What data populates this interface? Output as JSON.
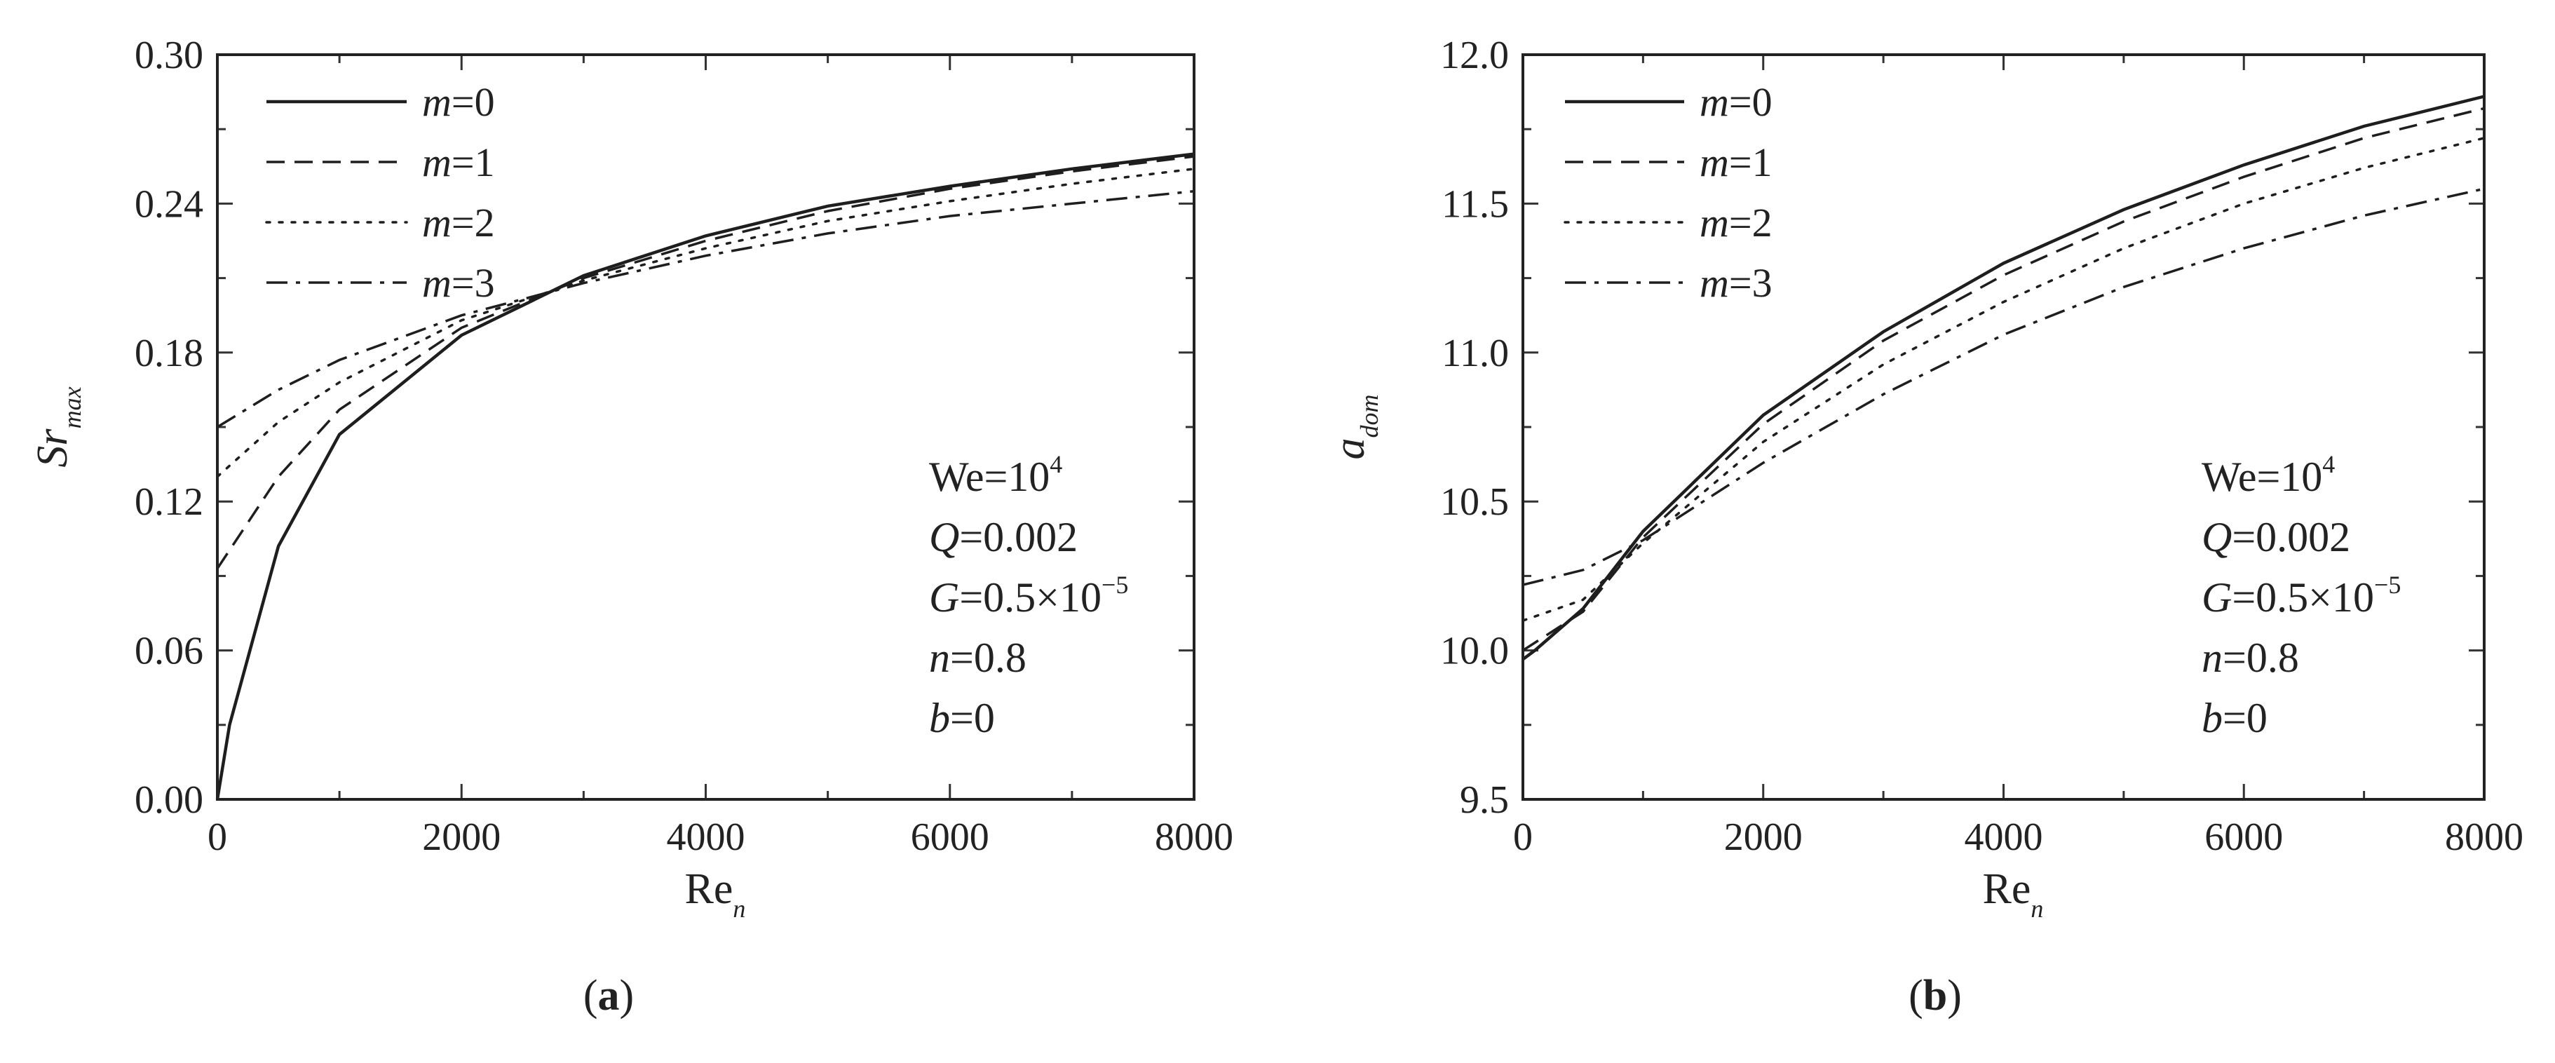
{
  "chart_data": [
    {
      "type": "line",
      "panel": "a",
      "caption": {
        "open": "(",
        "letter": "a",
        "close": ")"
      },
      "xlabel": {
        "main": "Re",
        "sub": "n"
      },
      "ylabel": {
        "main": "Sr",
        "sub": "max"
      },
      "xlim": [
        0,
        8000
      ],
      "ylim": [
        0,
        0.3
      ],
      "xticks": [
        0,
        2000,
        4000,
        6000,
        8000
      ],
      "xtick_labels": [
        "0",
        "2000",
        "4000",
        "6000",
        "8000"
      ],
      "yticks": [
        0,
        0.06,
        0.12,
        0.18,
        0.24,
        0.3
      ],
      "ytick_labels": [
        "0.00",
        "0.06",
        "0.12",
        "0.18",
        "0.24",
        "0.30"
      ],
      "grid": false,
      "legend_position": "top-left",
      "series": [
        {
          "name": "m=0",
          "label_var": "m",
          "label_val": "=0",
          "style": "solid",
          "x": [
            0,
            100,
            500,
            1000,
            2000,
            3000,
            4000,
            5000,
            6000,
            7000,
            8000
          ],
          "values": [
            0.0,
            0.03,
            0.102,
            0.147,
            0.187,
            0.211,
            0.227,
            0.239,
            0.247,
            0.254,
            0.26
          ]
        },
        {
          "name": "m=1",
          "label_var": "m",
          "label_val": "=1",
          "style": "dashed",
          "x": [
            0,
            500,
            1000,
            2000,
            3000,
            4000,
            5000,
            6000,
            7000,
            8000
          ],
          "values": [
            0.093,
            0.13,
            0.157,
            0.19,
            0.21,
            0.225,
            0.237,
            0.246,
            0.253,
            0.259
          ]
        },
        {
          "name": "m=2",
          "label_var": "m",
          "label_val": "=2",
          "style": "dotted",
          "x": [
            0,
            500,
            1000,
            2000,
            3000,
            4000,
            5000,
            6000,
            7000,
            8000
          ],
          "values": [
            0.13,
            0.152,
            0.168,
            0.193,
            0.209,
            0.222,
            0.233,
            0.241,
            0.248,
            0.254
          ]
        },
        {
          "name": "m=3",
          "label_var": "m",
          "label_val": "=3",
          "style": "dashdot",
          "x": [
            0,
            500,
            1000,
            2000,
            3000,
            4000,
            5000,
            6000,
            7000,
            8000
          ],
          "values": [
            0.15,
            0.165,
            0.177,
            0.195,
            0.208,
            0.219,
            0.228,
            0.235,
            0.24,
            0.245
          ]
        }
      ],
      "annotations": {
        "we": {
          "base": "We=10",
          "exp": "4"
        },
        "q": {
          "var": "Q",
          "val": "=0.002"
        },
        "g": {
          "var": "G",
          "val": "=0.5×10",
          "exp": "−5"
        },
        "n": {
          "var": "n",
          "val": "=0.8"
        },
        "b": {
          "var": "b",
          "val": "=0"
        }
      }
    },
    {
      "type": "line",
      "panel": "b",
      "caption": {
        "open": "(",
        "letter": "b",
        "close": ")"
      },
      "xlabel": {
        "main": "Re",
        "sub": "n"
      },
      "ylabel": {
        "main": "a",
        "sub": "dom"
      },
      "xlim": [
        0,
        8000
      ],
      "ylim": [
        9.5,
        12.0
      ],
      "xticks": [
        0,
        2000,
        4000,
        6000,
        8000
      ],
      "xtick_labels": [
        "0",
        "2000",
        "4000",
        "6000",
        "8000"
      ],
      "yticks": [
        9.5,
        10.0,
        10.5,
        11.0,
        11.5,
        12.0
      ],
      "ytick_labels": [
        "9.5",
        "10.0",
        "10.5",
        "11.0",
        "11.5",
        "12.0"
      ],
      "grid": false,
      "legend_position": "top-left",
      "series": [
        {
          "name": "m=0",
          "label_var": "m",
          "label_val": "=0",
          "style": "solid",
          "x": [
            0,
            100,
            500,
            1000,
            2000,
            3000,
            4000,
            5000,
            6000,
            7000,
            8000
          ],
          "values": [
            9.97,
            10.0,
            10.14,
            10.4,
            10.79,
            11.07,
            11.3,
            11.48,
            11.63,
            11.76,
            11.86
          ]
        },
        {
          "name": "m=1",
          "label_var": "m",
          "label_val": "=1",
          "style": "dashed",
          "x": [
            0,
            500,
            1000,
            2000,
            3000,
            4000,
            5000,
            6000,
            7000,
            8000
          ],
          "values": [
            10.0,
            10.13,
            10.38,
            10.76,
            11.04,
            11.26,
            11.44,
            11.59,
            11.72,
            11.82
          ]
        },
        {
          "name": "m=2",
          "label_var": "m",
          "label_val": "=2",
          "style": "dotted",
          "x": [
            0,
            500,
            1000,
            2000,
            3000,
            4000,
            5000,
            6000,
            7000,
            8000
          ],
          "values": [
            10.1,
            10.17,
            10.36,
            10.7,
            10.96,
            11.17,
            11.35,
            11.5,
            11.62,
            11.72
          ]
        },
        {
          "name": "m=3",
          "label_var": "m",
          "label_val": "=3",
          "style": "dashdot",
          "x": [
            0,
            500,
            1000,
            2000,
            3000,
            4000,
            5000,
            6000,
            7000,
            8000
          ],
          "values": [
            10.22,
            10.27,
            10.37,
            10.63,
            10.86,
            11.06,
            11.22,
            11.35,
            11.46,
            11.55
          ]
        }
      ],
      "annotations": {
        "we": {
          "base": "We=10",
          "exp": "4"
        },
        "q": {
          "var": "Q",
          "val": "=0.002"
        },
        "g": {
          "var": "G",
          "val": "=0.5×10",
          "exp": "−5"
        },
        "n": {
          "var": "n",
          "val": "=0.8"
        },
        "b": {
          "var": "b",
          "val": "=0"
        }
      }
    }
  ]
}
